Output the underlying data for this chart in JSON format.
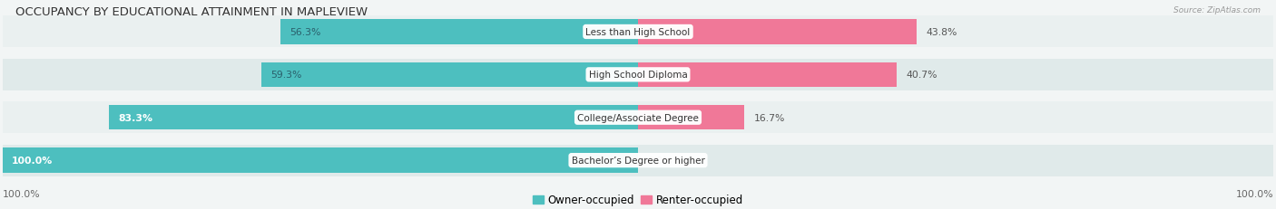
{
  "title": "OCCUPANCY BY EDUCATIONAL ATTAINMENT IN MAPLEVIEW",
  "source": "Source: ZipAtlas.com",
  "categories": [
    "Less than High School",
    "High School Diploma",
    "College/Associate Degree",
    "Bachelor’s Degree or higher"
  ],
  "owner_pct": [
    56.3,
    59.3,
    83.3,
    100.0
  ],
  "renter_pct": [
    43.8,
    40.7,
    16.7,
    0.0
  ],
  "owner_color": "#4dbfbf",
  "renter_color": "#f07898",
  "bg_color": "#f2f5f5",
  "row_colors": [
    "#eaf0f0",
    "#e0eaea"
  ],
  "title_fontsize": 9.5,
  "label_fontsize": 7.8,
  "legend_fontsize": 8.5,
  "bar_height": 0.58,
  "left_axis_label": "100.0%",
  "right_axis_label": "100.0%"
}
